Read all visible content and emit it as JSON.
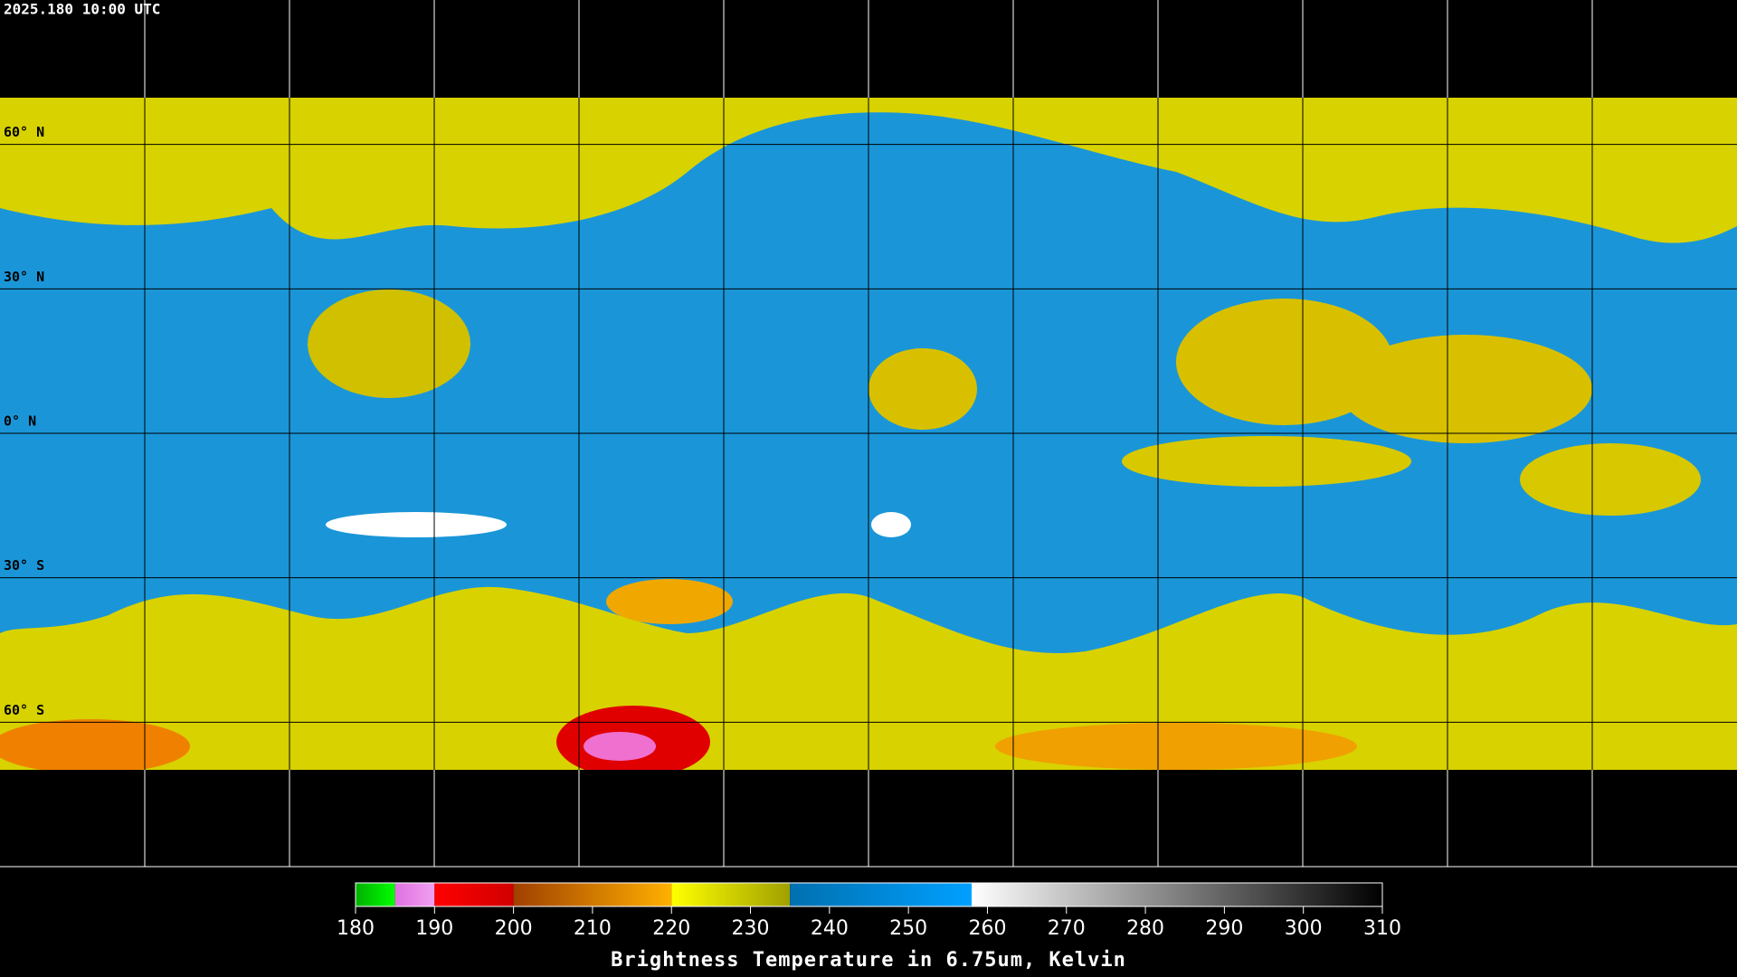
{
  "header": {
    "title": "2025.180 10:00 UTC"
  },
  "map": {
    "lat_ticks": [
      {
        "value": 60,
        "label": "60° N"
      },
      {
        "value": 30,
        "label": "30° N"
      },
      {
        "value": 0,
        "label": "0° N"
      },
      {
        "value": -30,
        "label": "30° S"
      },
      {
        "value": -60,
        "label": "60° S"
      }
    ],
    "lat_range": [
      90,
      -90
    ]
  },
  "colorbar": {
    "range": [
      180,
      310
    ],
    "ticks": [
      180,
      190,
      200,
      210,
      220,
      230,
      240,
      250,
      260,
      270,
      280,
      290,
      300,
      310
    ],
    "segments": [
      {
        "from": 180,
        "to": 185,
        "colors": [
          "#00b000",
          "#00ff00"
        ]
      },
      {
        "from": 185,
        "to": 190,
        "colors": [
          "#e070e0",
          "#f0a0f0"
        ]
      },
      {
        "from": 190,
        "to": 200,
        "colors": [
          "#ff0000",
          "#d00000"
        ]
      },
      {
        "from": 200,
        "to": 220,
        "colors": [
          "#a04000",
          "#ffb000"
        ]
      },
      {
        "from": 220,
        "to": 235,
        "colors": [
          "#ffff00",
          "#a0a000"
        ]
      },
      {
        "from": 235,
        "to": 258,
        "colors": [
          "#0070b0",
          "#00a0ff"
        ]
      },
      {
        "from": 258,
        "to": 310,
        "colors": [
          "#ffffff",
          "#000000"
        ]
      }
    ],
    "label": "Brightness Temperature in 6.75um, Kelvin"
  }
}
